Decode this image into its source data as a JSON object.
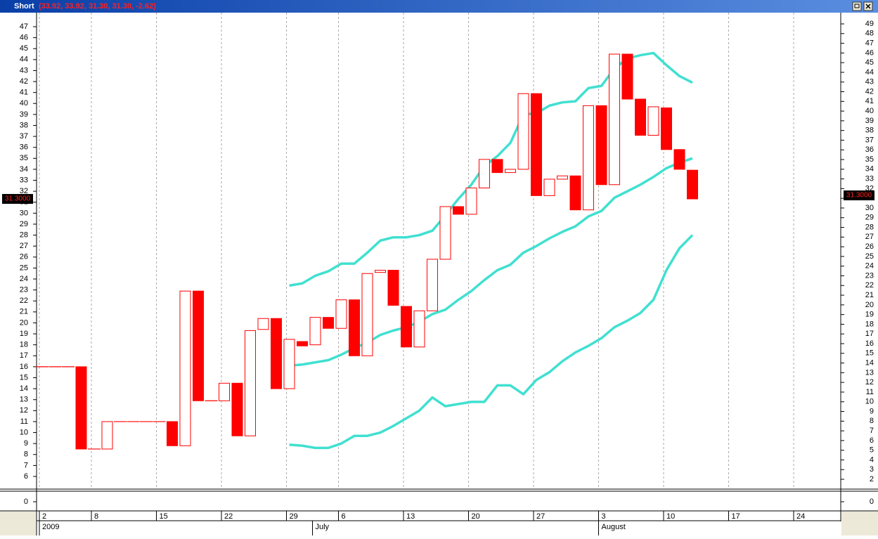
{
  "chart_data": {
    "type": "candlestick",
    "title": "Short",
    "subtitle": "(33.92, 33.92, 31.30, 31.30, -2.62)",
    "categories": [
      "2",
      null,
      null,
      null,
      "8",
      null,
      null,
      null,
      null,
      "15",
      null,
      null,
      null,
      null,
      "22",
      null,
      null,
      null,
      null,
      "29",
      null,
      null,
      null,
      "6",
      null,
      null,
      null,
      null,
      "13",
      null,
      null,
      null,
      null,
      "20",
      null,
      null,
      null,
      null,
      "27",
      null,
      null,
      null,
      null,
      "3",
      null,
      null,
      null,
      null,
      "10",
      null,
      null,
      null,
      null,
      "17",
      null,
      null,
      null,
      null,
      "24",
      null,
      null,
      null
    ],
    "category_groups": [
      "2009",
      null,
      null,
      null,
      null,
      null,
      null,
      null,
      null,
      null,
      null,
      null,
      null,
      null,
      null,
      null,
      null,
      null,
      null,
      null,
      null,
      "July",
      null,
      null,
      null,
      null,
      null,
      null,
      null,
      null,
      null,
      null,
      null,
      null,
      null,
      null,
      null,
      null,
      null,
      null,
      null,
      null,
      null,
      "August",
      null,
      null,
      null,
      null,
      null,
      null,
      null,
      null,
      null,
      null,
      null,
      null,
      null,
      null,
      null,
      null,
      null,
      null
    ],
    "open": [
      16,
      16,
      16,
      16,
      8.5,
      8.5,
      11,
      11,
      11,
      11,
      11,
      8.8,
      22.9,
      12.9,
      12.9,
      14.5,
      9.7,
      19.4,
      20.4,
      14,
      18.3,
      18,
      20.5,
      19.5,
      22.1,
      17,
      24.6,
      24.8,
      21.5,
      17.8,
      21.1,
      25.8,
      30.6,
      29.9,
      32.3,
      34.9,
      33.7,
      34,
      40.9,
      31.6,
      33.1,
      33.4,
      30.3,
      39.8,
      32.6,
      44.5,
      40.4,
      37.1,
      39.6,
      35.8,
      33.92,
      null,
      null,
      null,
      null,
      null,
      null,
      null,
      null,
      null,
      null,
      null
    ],
    "close": [
      16,
      16,
      16,
      8.5,
      8.5,
      11,
      11,
      11,
      11,
      11,
      8.8,
      22.9,
      12.9,
      12.9,
      14.5,
      9.7,
      19.3,
      20.4,
      14,
      18.5,
      17.9,
      20.5,
      19.5,
      22.1,
      17,
      24.5,
      24.8,
      21.6,
      17.8,
      21.1,
      25.8,
      30.6,
      29.9,
      32.3,
      34.9,
      33.7,
      34,
      40.9,
      31.6,
      33.1,
      33.4,
      30.3,
      39.8,
      32.6,
      44.5,
      40.4,
      37.1,
      39.7,
      35.8,
      34,
      31.3,
      null,
      null,
      null,
      null,
      null,
      null,
      null,
      null,
      null,
      null,
      null
    ],
    "up_color": "#ffffff",
    "down_color": "#ff0000",
    "series": [
      {
        "color": "#40e0d0",
        "values": [
          null,
          null,
          null,
          null,
          null,
          null,
          null,
          null,
          null,
          null,
          null,
          null,
          null,
          null,
          null,
          null,
          null,
          null,
          null,
          23.4,
          23.6,
          24.3,
          24.7,
          25.4,
          25.4,
          26.4,
          27.5,
          27.8,
          27.8,
          28.0,
          28.4,
          29.8,
          31.3,
          32.6,
          34.3,
          35.2,
          36.4,
          39.0,
          39.1,
          39.8,
          40.1,
          40.2,
          41.4,
          41.6,
          43.2,
          44.1,
          44.4,
          44.6,
          43.5,
          42.5,
          41.9,
          null,
          null,
          null,
          null,
          null,
          null,
          null,
          null,
          null,
          null,
          null
        ]
      },
      {
        "color": "#40e0d0",
        "values": [
          null,
          null,
          null,
          null,
          null,
          null,
          null,
          null,
          null,
          null,
          null,
          null,
          null,
          null,
          null,
          null,
          null,
          null,
          null,
          16.1,
          16.2,
          16.4,
          16.6,
          17.1,
          17.7,
          18.2,
          18.9,
          19.3,
          19.6,
          20.1,
          20.8,
          21.2,
          22.1,
          22.9,
          23.9,
          24.8,
          25.3,
          26.4,
          27.0,
          27.7,
          28.3,
          28.8,
          29.7,
          30.2,
          31.4,
          32.0,
          32.6,
          33.3,
          34.1,
          34.6,
          35.0,
          null,
          null,
          null,
          null,
          null,
          null,
          null,
          null,
          null,
          null,
          null
        ]
      },
      {
        "color": "#40e0d0",
        "values": [
          null,
          null,
          null,
          null,
          null,
          null,
          null,
          null,
          null,
          null,
          null,
          null,
          null,
          null,
          null,
          null,
          null,
          null,
          null,
          8.9,
          8.8,
          8.6,
          8.6,
          9.0,
          9.7,
          9.7,
          10.0,
          10.6,
          11.3,
          12.0,
          13.2,
          12.4,
          12.6,
          12.8,
          12.8,
          14.3,
          14.3,
          13.5,
          14.8,
          15.5,
          16.5,
          17.3,
          17.9,
          18.6,
          19.6,
          20.2,
          20.9,
          22.1,
          24.8,
          26.8,
          28.0,
          null,
          null,
          null,
          null,
          null,
          null,
          null,
          null,
          null,
          null,
          null
        ]
      }
    ],
    "ylim": [
      4.91,
      48.28
    ],
    "yticks": [
      6,
      7,
      8,
      9,
      10,
      11,
      12,
      13,
      14,
      15,
      16,
      17,
      18,
      19,
      20,
      21,
      22,
      23,
      24,
      25,
      26,
      27,
      28,
      29,
      30,
      31,
      32,
      33,
      34,
      35,
      36,
      37,
      38,
      39,
      40,
      41,
      42,
      43,
      44,
      45,
      46,
      47
    ],
    "y2lim": [
      1.06,
      50.16
    ],
    "y2ticks": [
      2,
      3,
      4,
      5,
      6,
      7,
      8,
      9,
      10,
      11,
      12,
      13,
      14,
      15,
      16,
      17,
      18,
      19,
      20,
      21,
      22,
      23,
      24,
      25,
      26,
      27,
      28,
      29,
      30,
      31,
      32,
      33,
      34,
      35,
      36,
      37,
      38,
      39,
      40,
      41,
      42,
      43,
      44,
      45,
      46,
      47,
      48,
      49
    ],
    "last_value": {
      "value": 31.3,
      "label": "31.3000"
    },
    "lower_panel": {
      "yticks": [
        0
      ]
    }
  }
}
